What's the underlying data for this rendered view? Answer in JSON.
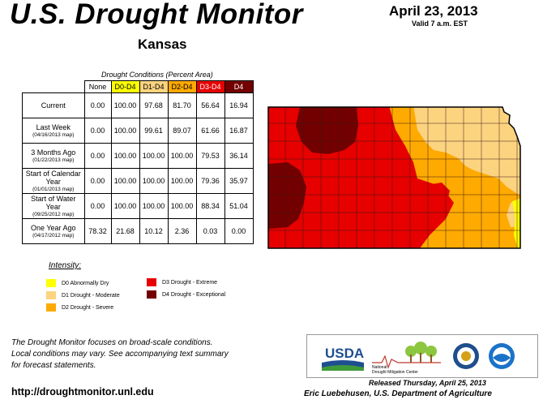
{
  "header": {
    "title": "U.S. Drought Monitor",
    "state": "Kansas",
    "date": "April 23, 2013",
    "valid": "Valid 7 a.m. EST"
  },
  "table": {
    "caption": "Drought Conditions (Percent Area)",
    "columns": [
      "None",
      "D0-D4",
      "D1-D4",
      "D2-D4",
      "D3-D4",
      "D4"
    ],
    "rows": [
      {
        "label": "Current",
        "sublabel": "",
        "values": [
          "0.00",
          "100.00",
          "97.68",
          "81.70",
          "56.64",
          "16.94"
        ]
      },
      {
        "label": "Last Week",
        "sublabel": "(04/16/2013 map)",
        "values": [
          "0.00",
          "100.00",
          "99.61",
          "89.07",
          "61.66",
          "16.87"
        ]
      },
      {
        "label": "3 Months Ago",
        "sublabel": "(01/22/2013 map)",
        "values": [
          "0.00",
          "100.00",
          "100.00",
          "100.00",
          "79.53",
          "36.14"
        ]
      },
      {
        "label": "Start of Calendar Year",
        "sublabel": "(01/01/2013 map)",
        "values": [
          "0.00",
          "100.00",
          "100.00",
          "100.00",
          "79.36",
          "35.97"
        ]
      },
      {
        "label": "Start of Water Year",
        "sublabel": "(09/25/2012 map)",
        "values": [
          "0.00",
          "100.00",
          "100.00",
          "100.00",
          "88.34",
          "51.04"
        ]
      },
      {
        "label": "One Year Ago",
        "sublabel": "(04/17/2012 map)",
        "values": [
          "78.32",
          "21.68",
          "10.12",
          "2.36",
          "0.03",
          "0.00"
        ]
      }
    ]
  },
  "legend": {
    "title": "Intensity:",
    "items": [
      {
        "label": "D0 Abnormally Dry",
        "color": "#ffff00"
      },
      {
        "label": "D1 Drought - Moderate",
        "color": "#fcd37f"
      },
      {
        "label": "D2 Drought - Severe",
        "color": "#ffaa00"
      },
      {
        "label": "D3 Drought - Extreme",
        "color": "#e60000"
      },
      {
        "label": "D4 Drought - Exceptional",
        "color": "#730000"
      }
    ]
  },
  "footer": {
    "note_line1": "The Drought Monitor focuses on broad-scale conditions.",
    "note_line2": "Local conditions may vary. See accompanying text summary",
    "note_line3": "for forecast statements.",
    "url": "http://droughtmonitor.unl.edu",
    "released": "Released Thursday, April 25, 2013",
    "author": "Eric Luebehusen, U.S. Department of Agriculture"
  },
  "logos": {
    "usda": "USDA",
    "ndmc_line1": "National",
    "ndmc_line2": "Drought Mitigation Center",
    "doc": "DOC seal",
    "noaa": "NOAA"
  },
  "colors": {
    "d0": "#ffff00",
    "d1": "#fcd37f",
    "d2": "#ffaa00",
    "d3": "#e60000",
    "d4": "#730000"
  }
}
